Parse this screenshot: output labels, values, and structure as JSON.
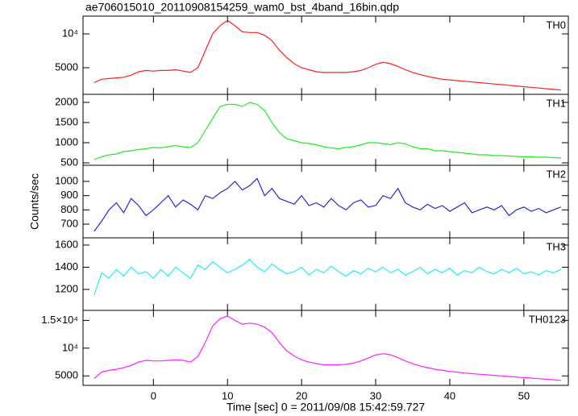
{
  "chart_data": [
    {
      "type": "line",
      "title": "ae706015010_20110908154259_wam0_bst_4band_16bin.qdp",
      "x": [
        -8,
        -7,
        -6,
        -5,
        -4,
        -3,
        -2,
        -1,
        0,
        1,
        2,
        3,
        4,
        5,
        6,
        7,
        8,
        9,
        10,
        11,
        12,
        13,
        14,
        15,
        16,
        17,
        18,
        19,
        20,
        21,
        22,
        23,
        24,
        25,
        26,
        27,
        28,
        29,
        30,
        31,
        32,
        33,
        34,
        35,
        36,
        37,
        38,
        39,
        40,
        41,
        42,
        43,
        44,
        45,
        46,
        47,
        48,
        49,
        50,
        51,
        52,
        53,
        54,
        55
      ],
      "series": [
        {
          "name": "TH0",
          "color": "#ff2020",
          "values": [
            2800,
            3300,
            3400,
            3500,
            3600,
            3900,
            4400,
            4600,
            4500,
            4600,
            4600,
            4700,
            4500,
            4300,
            5000,
            7500,
            10000,
            11200,
            12000,
            11200,
            10300,
            10200,
            10200,
            9800,
            9000,
            7600,
            6500,
            5600,
            5000,
            4700,
            4400,
            4300,
            4300,
            4300,
            4300,
            4400,
            4600,
            5000,
            5500,
            5800,
            5600,
            5200,
            4700,
            4300,
            4000,
            3700,
            3500,
            3300,
            3200,
            3100,
            3000,
            2900,
            2800,
            2700,
            2600,
            2500,
            2400,
            2300,
            2200,
            2100,
            2000,
            1900,
            1800,
            1700
          ]
        }
      ],
      "xlim": [
        -9.5,
        56
      ],
      "xticks": [
        0,
        10,
        20,
        30,
        40,
        50
      ],
      "ylim": [
        1070,
        12620
      ],
      "yticks": [
        5000,
        {
          "value": 10000,
          "label": "10⁴"
        }
      ]
    },
    {
      "type": "line",
      "x": [
        -8,
        -7,
        -6,
        -5,
        -4,
        -3,
        -2,
        -1,
        0,
        1,
        2,
        3,
        4,
        5,
        6,
        7,
        8,
        9,
        10,
        11,
        12,
        13,
        14,
        15,
        16,
        17,
        18,
        19,
        20,
        21,
        22,
        23,
        24,
        25,
        26,
        27,
        28,
        29,
        30,
        31,
        32,
        33,
        34,
        35,
        36,
        37,
        38,
        39,
        40,
        41,
        42,
        43,
        44,
        45,
        46,
        47,
        48,
        49,
        50,
        51,
        52,
        53,
        54,
        55
      ],
      "series": [
        {
          "name": "TH1",
          "color": "#22ee22",
          "values": [
            580,
            650,
            700,
            720,
            780,
            800,
            830,
            850,
            880,
            870,
            900,
            930,
            900,
            880,
            1000,
            1300,
            1600,
            1900,
            1950,
            1950,
            1900,
            2000,
            1950,
            1800,
            1500,
            1250,
            1100,
            1050,
            1000,
            980,
            950,
            900,
            870,
            850,
            880,
            900,
            950,
            1000,
            1000,
            980,
            950,
            1000,
            970,
            900,
            850,
            850,
            800,
            800,
            780,
            760,
            740,
            720,
            700,
            700,
            680,
            680,
            670,
            660,
            650,
            650,
            640,
            640,
            630,
            620
          ]
        }
      ],
      "xlim": [
        -9.5,
        56
      ],
      "xticks": [
        0,
        10,
        20,
        30,
        40,
        50
      ],
      "ylim": [
        440,
        2200
      ],
      "yticks": [
        500,
        1000,
        1500,
        2000
      ]
    },
    {
      "type": "line",
      "ylabel": "Counts/sec",
      "x": [
        -8,
        -7,
        -6,
        -5,
        -4,
        -3,
        -2,
        -1,
        0,
        1,
        2,
        3,
        4,
        5,
        6,
        7,
        8,
        9,
        10,
        11,
        12,
        13,
        14,
        15,
        16,
        17,
        18,
        19,
        20,
        21,
        22,
        23,
        24,
        25,
        26,
        27,
        28,
        29,
        30,
        31,
        32,
        33,
        34,
        35,
        36,
        37,
        38,
        39,
        40,
        41,
        42,
        43,
        44,
        45,
        46,
        47,
        48,
        49,
        50,
        51,
        52,
        53,
        54,
        55
      ],
      "series": [
        {
          "name": "TH2",
          "color": "#2828dd",
          "values": [
            650,
            720,
            800,
            850,
            780,
            880,
            830,
            760,
            800,
            850,
            900,
            820,
            870,
            840,
            800,
            900,
            880,
            920,
            950,
            1000,
            940,
            970,
            1020,
            900,
            950,
            880,
            860,
            840,
            900,
            830,
            850,
            820,
            880,
            830,
            800,
            850,
            870,
            820,
            830,
            900,
            880,
            950,
            850,
            820,
            800,
            840,
            810,
            830,
            790,
            820,
            850,
            780,
            800,
            820,
            800,
            830,
            760,
            800,
            820,
            790,
            810,
            780,
            800,
            820
          ]
        }
      ],
      "xlim": [
        -9.5,
        56
      ],
      "xticks": [
        0,
        10,
        20,
        30,
        40,
        50
      ],
      "ylim": [
        604,
        1113
      ],
      "yticks": [
        700,
        800,
        900,
        1000
      ]
    },
    {
      "type": "line",
      "x": [
        -8,
        -7,
        -6,
        -5,
        -4,
        -3,
        -2,
        -1,
        0,
        1,
        2,
        3,
        4,
        5,
        6,
        7,
        8,
        9,
        10,
        11,
        12,
        13,
        14,
        15,
        16,
        17,
        18,
        19,
        20,
        21,
        22,
        23,
        24,
        25,
        26,
        27,
        28,
        29,
        30,
        31,
        32,
        33,
        34,
        35,
        36,
        37,
        38,
        39,
        40,
        41,
        42,
        43,
        44,
        45,
        46,
        47,
        48,
        49,
        50,
        51,
        52,
        53,
        54,
        55
      ],
      "series": [
        {
          "name": "TH3",
          "color": "#22eeee",
          "values": [
            1150,
            1350,
            1300,
            1380,
            1320,
            1400,
            1340,
            1360,
            1300,
            1380,
            1320,
            1400,
            1350,
            1300,
            1420,
            1380,
            1450,
            1400,
            1350,
            1380,
            1420,
            1470,
            1400,
            1360,
            1430,
            1380,
            1340,
            1360,
            1400,
            1330,
            1380,
            1350,
            1410,
            1360,
            1320,
            1370,
            1340,
            1390,
            1360,
            1400,
            1350,
            1380,
            1330,
            1360,
            1400,
            1340,
            1380,
            1350,
            1390,
            1330,
            1370,
            1350,
            1400,
            1360,
            1340,
            1380,
            1350,
            1390,
            1340,
            1360,
            1330,
            1370,
            1350,
            1380
          ]
        }
      ],
      "xlim": [
        -9.5,
        56
      ],
      "xticks": [
        0,
        10,
        20,
        30,
        40,
        50
      ],
      "ylim": [
        1011,
        1665
      ],
      "yticks": [
        1200,
        1400,
        1600
      ]
    },
    {
      "type": "line",
      "xlabel": "Time [sec] 0 = 2011/09/08 15:42:59.727",
      "x": [
        -8,
        -7,
        -6,
        -5,
        -4,
        -3,
        -2,
        -1,
        0,
        1,
        2,
        3,
        4,
        5,
        6,
        7,
        8,
        9,
        10,
        11,
        12,
        13,
        14,
        15,
        16,
        17,
        18,
        19,
        20,
        21,
        22,
        23,
        24,
        25,
        26,
        27,
        28,
        29,
        30,
        31,
        32,
        33,
        34,
        35,
        36,
        37,
        38,
        39,
        40,
        41,
        42,
        43,
        44,
        45,
        46,
        47,
        48,
        49,
        50,
        51,
        52,
        53,
        54,
        55
      ],
      "series": [
        {
          "name": "TH0123",
          "color": "#ff22ff",
          "values": [
            4500,
            5700,
            6000,
            6200,
            6500,
            6900,
            7500,
            7800,
            7700,
            7700,
            7800,
            7900,
            7800,
            7500,
            8500,
            11000,
            14000,
            15300,
            15800,
            15000,
            14300,
            14500,
            14300,
            13800,
            12800,
            11000,
            9500,
            8600,
            7900,
            7500,
            7200,
            7000,
            7000,
            7000,
            7100,
            7300,
            7700,
            8200,
            8800,
            9000,
            8800,
            8300,
            7700,
            7200,
            6800,
            6500,
            6200,
            6000,
            5800,
            5700,
            5500,
            5400,
            5300,
            5200,
            5100,
            5000,
            4900,
            4800,
            4700,
            4600,
            4500,
            4400,
            4300,
            4200
          ]
        }
      ],
      "xlim": [
        -9.5,
        56
      ],
      "xticks": [
        0,
        10,
        20,
        30,
        40,
        50
      ],
      "ylim": [
        3300,
        16800
      ],
      "yticks": [
        5000,
        {
          "value": 10000,
          "label": "10⁴"
        },
        {
          "value": 15000,
          "label": "1.5×10⁴"
        }
      ]
    }
  ]
}
